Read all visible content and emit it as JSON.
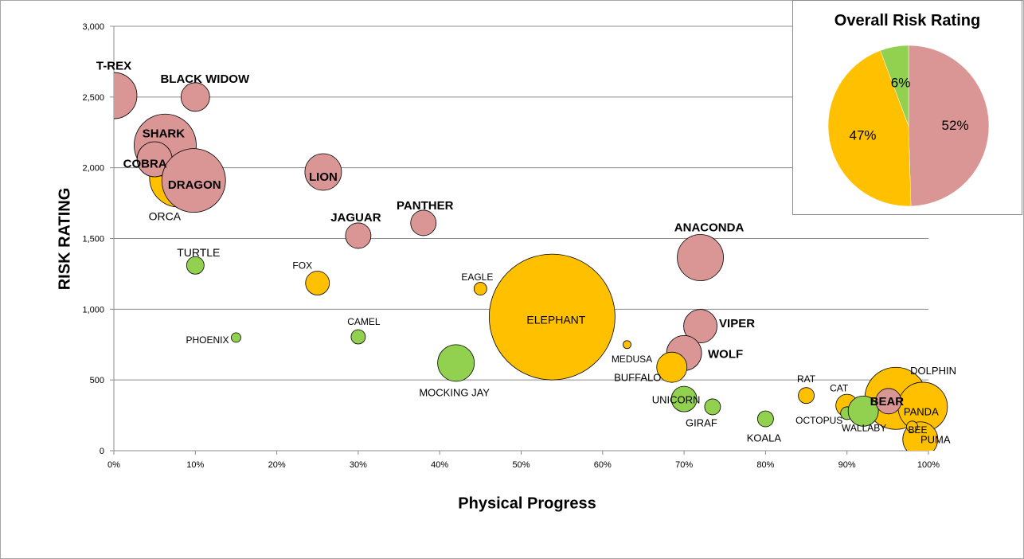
{
  "chart_data": [
    {
      "type": "bubble",
      "title": "",
      "xlabel": "Physical Progress",
      "ylabel": "RISK RATING",
      "xlim": [
        0,
        1
      ],
      "ylim": [
        0,
        3000
      ],
      "x_ticks": [
        "0%",
        "10%",
        "20%",
        "30%",
        "40%",
        "50%",
        "60%",
        "70%",
        "80%",
        "90%",
        "100%"
      ],
      "y_ticks": [
        "0",
        "500",
        "1,000",
        "1,500",
        "2,000",
        "2,500",
        "3,000"
      ],
      "grid": "horizontal",
      "colors": {
        "red": "#da9694",
        "amber": "#ffc000",
        "green": "#92d050"
      },
      "points": [
        {
          "name": "T-REX",
          "x": 0.0,
          "y": 2510,
          "r": 29,
          "color": "red",
          "bold": true
        },
        {
          "name": "BLACK WIDOW",
          "x": 0.1,
          "y": 2500,
          "r": 18,
          "color": "red",
          "bold": true
        },
        {
          "name": "ORCA",
          "x": 0.08,
          "y": 1930,
          "r": 37,
          "color": "amber",
          "bold": false
        },
        {
          "name": "SHARK",
          "x": 0.063,
          "y": 2160,
          "r": 39,
          "color": "red",
          "bold": true
        },
        {
          "name": "COBRA",
          "x": 0.05,
          "y": 2060,
          "r": 22,
          "color": "red",
          "bold": true
        },
        {
          "name": "DRAGON",
          "x": 0.098,
          "y": 1910,
          "r": 40,
          "color": "red",
          "bold": true
        },
        {
          "name": "LION",
          "x": 0.257,
          "y": 1970,
          "r": 23,
          "color": "red",
          "bold": true
        },
        {
          "name": "PANTHER",
          "x": 0.38,
          "y": 1610,
          "r": 16,
          "color": "red",
          "bold": true
        },
        {
          "name": "JAGUAR",
          "x": 0.3,
          "y": 1520,
          "r": 16,
          "color": "red",
          "bold": true
        },
        {
          "name": "TURTLE",
          "x": 0.1,
          "y": 1310,
          "r": 11,
          "color": "green",
          "bold": false
        },
        {
          "name": "FOX",
          "x": 0.25,
          "y": 1185,
          "r": 15,
          "color": "amber",
          "bold": false
        },
        {
          "name": "EAGLE",
          "x": 0.45,
          "y": 1145,
          "r": 8,
          "color": "amber",
          "bold": false
        },
        {
          "name": "ELEPHANT",
          "x": 0.538,
          "y": 945,
          "r": 79,
          "color": "amber",
          "bold": false
        },
        {
          "name": "ANACONDA",
          "x": 0.72,
          "y": 1365,
          "r": 29,
          "color": "red",
          "bold": true
        },
        {
          "name": "PHOENIX",
          "x": 0.15,
          "y": 800,
          "r": 6,
          "color": "green",
          "bold": false
        },
        {
          "name": "CAMEL",
          "x": 0.3,
          "y": 805,
          "r": 9,
          "color": "green",
          "bold": false
        },
        {
          "name": "MOCKING JAY",
          "x": 0.42,
          "y": 620,
          "r": 23,
          "color": "green",
          "bold": false
        },
        {
          "name": "MEDUSA",
          "x": 0.63,
          "y": 750,
          "r": 5,
          "color": "amber",
          "bold": false
        },
        {
          "name": "VIPER",
          "x": 0.72,
          "y": 880,
          "r": 21,
          "color": "red",
          "bold": true
        },
        {
          "name": "WOLF",
          "x": 0.7,
          "y": 690,
          "r": 22,
          "color": "red",
          "bold": true
        },
        {
          "name": "BUFFALO",
          "x": 0.685,
          "y": 590,
          "r": 19,
          "color": "amber",
          "bold": false
        },
        {
          "name": "UNICORN",
          "x": 0.7,
          "y": 365,
          "r": 16,
          "color": "green",
          "bold": false
        },
        {
          "name": "GIRAF",
          "x": 0.735,
          "y": 310,
          "r": 10,
          "color": "green",
          "bold": false
        },
        {
          "name": "KOALA",
          "x": 0.8,
          "y": 225,
          "r": 10,
          "color": "green",
          "bold": false
        },
        {
          "name": "RAT",
          "x": 0.85,
          "y": 390,
          "r": 10,
          "color": "amber",
          "bold": false
        },
        {
          "name": "CAT",
          "x": 0.9,
          "y": 320,
          "r": 14,
          "color": "amber",
          "bold": false
        },
        {
          "name": "OCTOPUS",
          "x": 0.9,
          "y": 265,
          "r": 8,
          "color": "green",
          "bold": false
        },
        {
          "name": "DOLPHIN",
          "x": 0.96,
          "y": 370,
          "r": 39,
          "color": "amber",
          "bold": false
        },
        {
          "name": "PANDA",
          "x": 0.993,
          "y": 310,
          "r": 31,
          "color": "amber",
          "bold": false
        },
        {
          "name": "PUMA",
          "x": 0.99,
          "y": 80,
          "r": 22,
          "color": "amber",
          "bold": false
        },
        {
          "name": "BEE",
          "x": 0.98,
          "y": 170,
          "r": 7,
          "color": "amber",
          "bold": false
        },
        {
          "name": "WALLABY",
          "x": 0.92,
          "y": 280,
          "r": 19,
          "color": "green",
          "bold": false
        },
        {
          "name": "BEAR",
          "x": 0.951,
          "y": 350,
          "r": 16,
          "color": "red",
          "bold": true
        }
      ]
    },
    {
      "type": "pie",
      "title": "Overall Risk Rating",
      "slices": [
        {
          "label": "52%",
          "value": 52,
          "color": "#da9694"
        },
        {
          "label": "47%",
          "value": 47,
          "color": "#ffc000"
        },
        {
          "label": "6%",
          "value": 6,
          "color": "#92d050"
        }
      ]
    }
  ]
}
